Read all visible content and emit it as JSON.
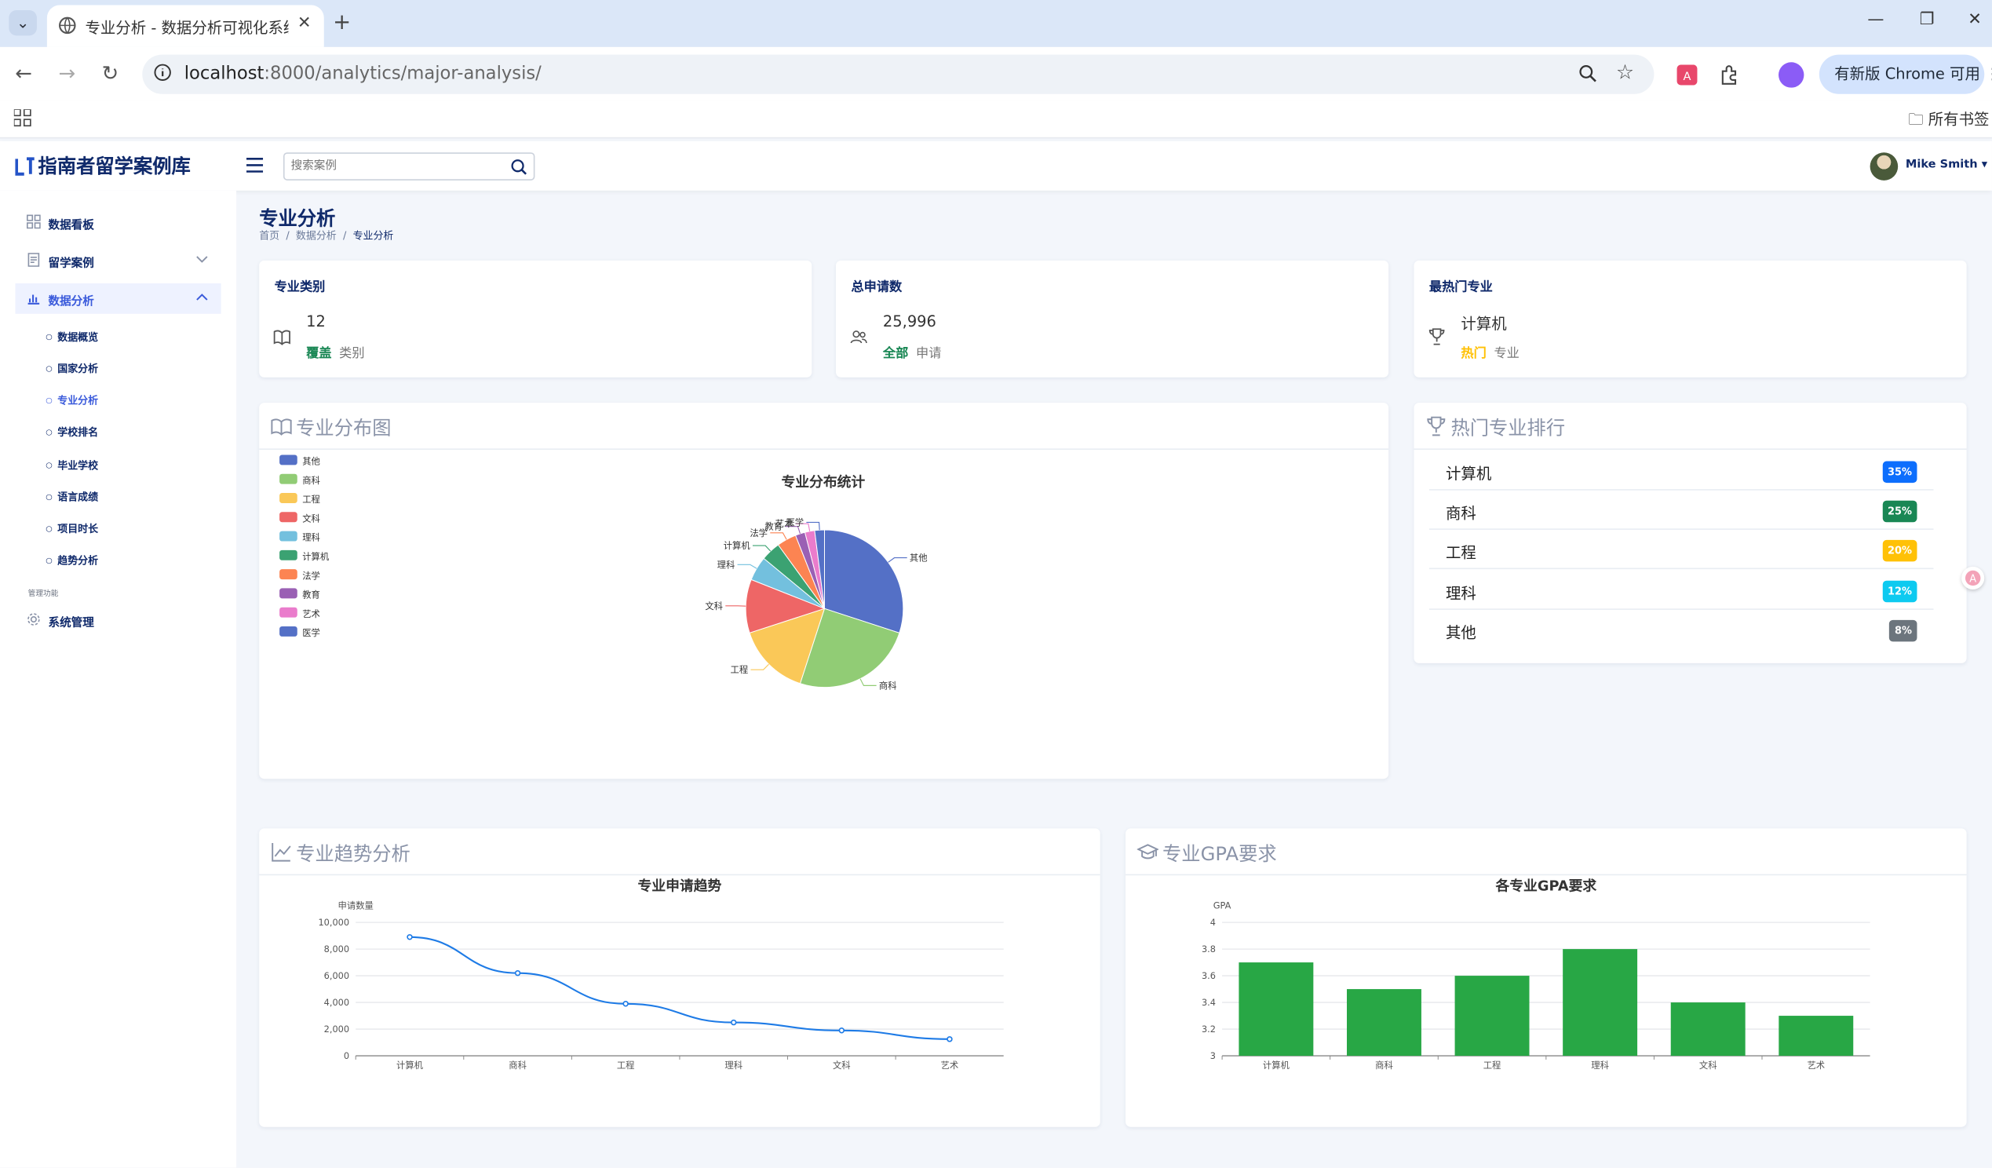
{
  "browser": {
    "tab_title": "专业分析 - 数据分析可视化系统",
    "url_host": "localhost",
    "url_rest": ":8000/analytics/major-analysis/",
    "update_label": "有新版 Chrome 可用",
    "bookmarks_label": "所有书签"
  },
  "header": {
    "logo": "指南者留学案例库",
    "search_placeholder": "搜索案例",
    "user_name": "Mike Smith"
  },
  "sidebar": {
    "items": [
      {
        "label": "数据看板",
        "icon": "dashboard-icon"
      },
      {
        "label": "留学案例",
        "icon": "document-icon"
      },
      {
        "label": "数据分析",
        "icon": "bar-chart-icon"
      }
    ],
    "sub_items": [
      "数据概览",
      "国家分析",
      "专业分析",
      "学校排名",
      "毕业学校",
      "语言成绩",
      "项目时长",
      "趋势分析"
    ],
    "section_label": "管理功能",
    "admin_item": {
      "label": "系统管理",
      "icon": "gear-icon"
    }
  },
  "page": {
    "title": "专业分析",
    "breadcrumb": [
      "首页",
      "数据分析",
      "专业分析"
    ]
  },
  "stats": [
    {
      "title": "专业类别",
      "value": "12",
      "highlight": "覆盖",
      "suffix": "类别",
      "color": "#198754",
      "icon": "book-icon"
    },
    {
      "title": "总申请数",
      "value": "25,996",
      "highlight": "全部",
      "suffix": "申请",
      "color": "#198754",
      "icon": "users-icon"
    },
    {
      "title": "最热门专业",
      "value": "计算机",
      "highlight": "热门",
      "suffix": "专业",
      "color": "#ffc107",
      "icon": "trophy-icon"
    }
  ],
  "panels": {
    "distribution": "专业分布图",
    "ranking": "热门专业排行",
    "trend": "专业趋势分析",
    "gpa": "专业GPA要求"
  },
  "ranking": [
    {
      "name": "计算机",
      "badge": "35%",
      "color": "#0d6efd"
    },
    {
      "name": "商科",
      "badge": "25%",
      "color": "#198754"
    },
    {
      "name": "工程",
      "badge": "20%",
      "color": "#ffc107"
    },
    {
      "name": "理科",
      "badge": "12%",
      "color": "#0dcaf0"
    },
    {
      "name": "其他",
      "badge": "8%",
      "color": "#6c757d"
    }
  ],
  "chart_data": [
    {
      "type": "pie",
      "title": "专业分布统计",
      "legend_position": "left",
      "categories": [
        "其他",
        "商科",
        "工程",
        "文科",
        "理科",
        "计算机",
        "法学",
        "教育",
        "艺术",
        "医学"
      ],
      "values": [
        30,
        25,
        15,
        11,
        5,
        4,
        4,
        2,
        2,
        2
      ],
      "colors": [
        "#5470c6",
        "#91cc75",
        "#fac858",
        "#ee6666",
        "#73c0de",
        "#3ba272",
        "#fc8452",
        "#9a60b4",
        "#ea7ccc",
        "#5470c6"
      ]
    },
    {
      "type": "line",
      "title": "专业申请趋势",
      "ylabel": "申请数量",
      "categories": [
        "计算机",
        "商科",
        "工程",
        "理科",
        "文科",
        "艺术"
      ],
      "values": [
        8900,
        6200,
        3900,
        2500,
        1900,
        1250
      ],
      "ylim": [
        0,
        10000
      ],
      "yticks": [
        "0",
        "2,000",
        "4,000",
        "6,000",
        "8,000",
        "10,000"
      ],
      "color": "#1e7be6",
      "grid": true
    },
    {
      "type": "bar",
      "title": "各专业GPA要求",
      "ylabel": "GPA",
      "categories": [
        "计算机",
        "商科",
        "工程",
        "理科",
        "文科",
        "艺术"
      ],
      "values": [
        3.7,
        3.5,
        3.6,
        3.8,
        3.4,
        3.3
      ],
      "ylim": [
        3,
        4
      ],
      "yticks": [
        "3",
        "3.2",
        "3.4",
        "3.6",
        "3.8",
        "4"
      ],
      "color": "#28a745",
      "grid": true
    }
  ]
}
